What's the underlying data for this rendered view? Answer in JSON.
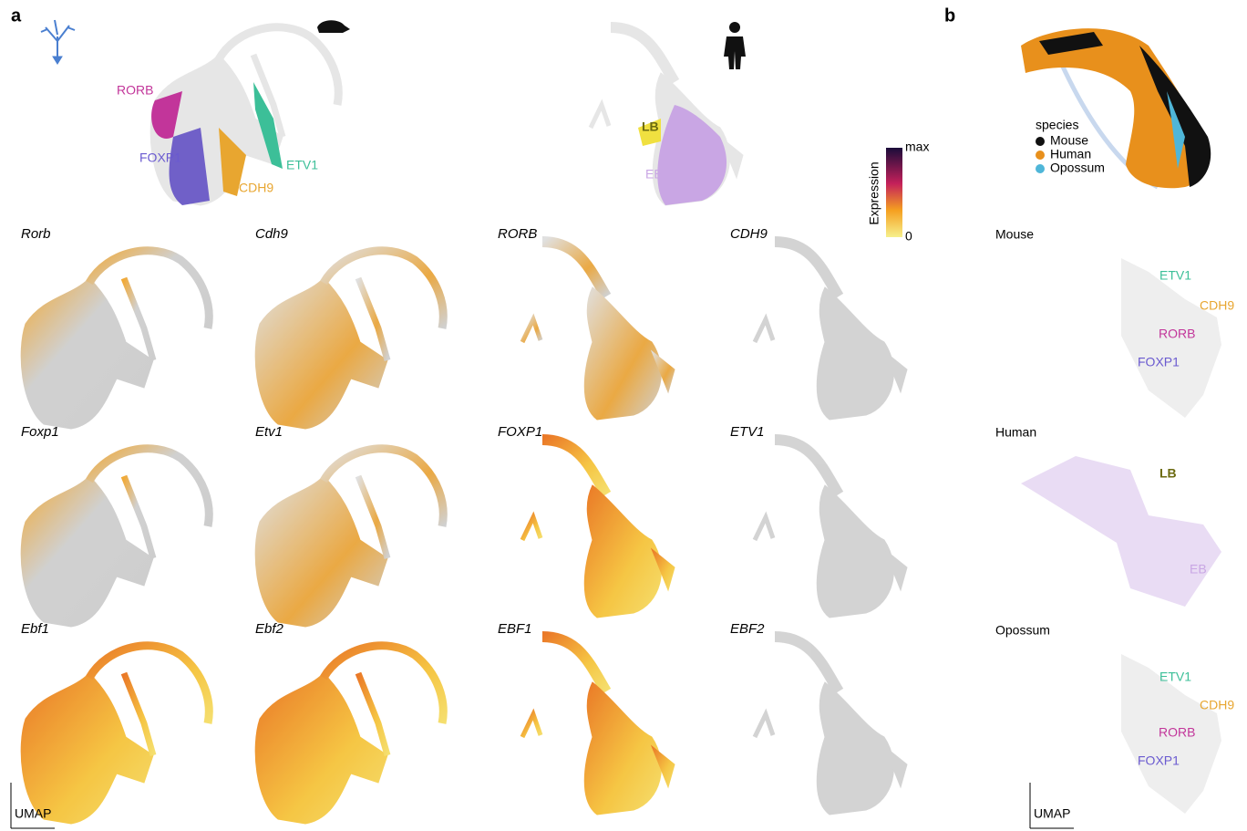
{
  "panel_a": {
    "label": "a",
    "mouse_clusters": [
      "RORB",
      "FOXP1",
      "CDH9",
      "ETV1"
    ],
    "human_clusters": [
      "LB",
      "EB"
    ],
    "mouse_genes": [
      "Rorb",
      "Cdh9",
      "Foxp1",
      "Etv1",
      "Ebf1",
      "Ebf2"
    ],
    "human_genes": [
      "RORB",
      "CDH9",
      "FOXP1",
      "ETV1",
      "EBF1",
      "EBF2"
    ],
    "colorbar": {
      "title": "Expression",
      "max": "max",
      "min": 0
    },
    "axis": "UMAP"
  },
  "panel_b": {
    "label": "b",
    "legend": {
      "title": "species",
      "items": [
        "Mouse",
        "Human",
        "Opossum"
      ]
    },
    "sections": [
      {
        "title": "Mouse",
        "labels": [
          "ETV1",
          "CDH9",
          "RORB",
          "FOXP1"
        ]
      },
      {
        "title": "Human",
        "labels": [
          "LB",
          "EB"
        ]
      },
      {
        "title": "Opossum",
        "labels": [
          "ETV1",
          "CDH9",
          "RORB",
          "FOXP1"
        ]
      }
    ],
    "axis": "UMAP"
  }
}
